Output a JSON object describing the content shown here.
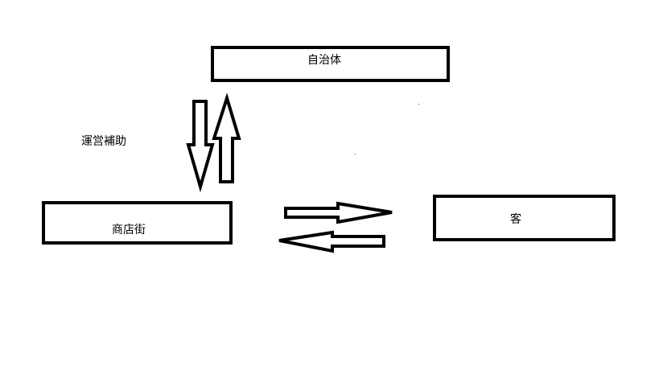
{
  "nodes": {
    "government": {
      "label": "自治体"
    },
    "shopping_street": {
      "label": "商店街"
    },
    "customer": {
      "label": "客"
    }
  },
  "edges": {
    "government_shopping_street": {
      "label": "運営補助"
    }
  },
  "colors": {
    "stroke": "#000000",
    "fill": "#ffffff"
  }
}
